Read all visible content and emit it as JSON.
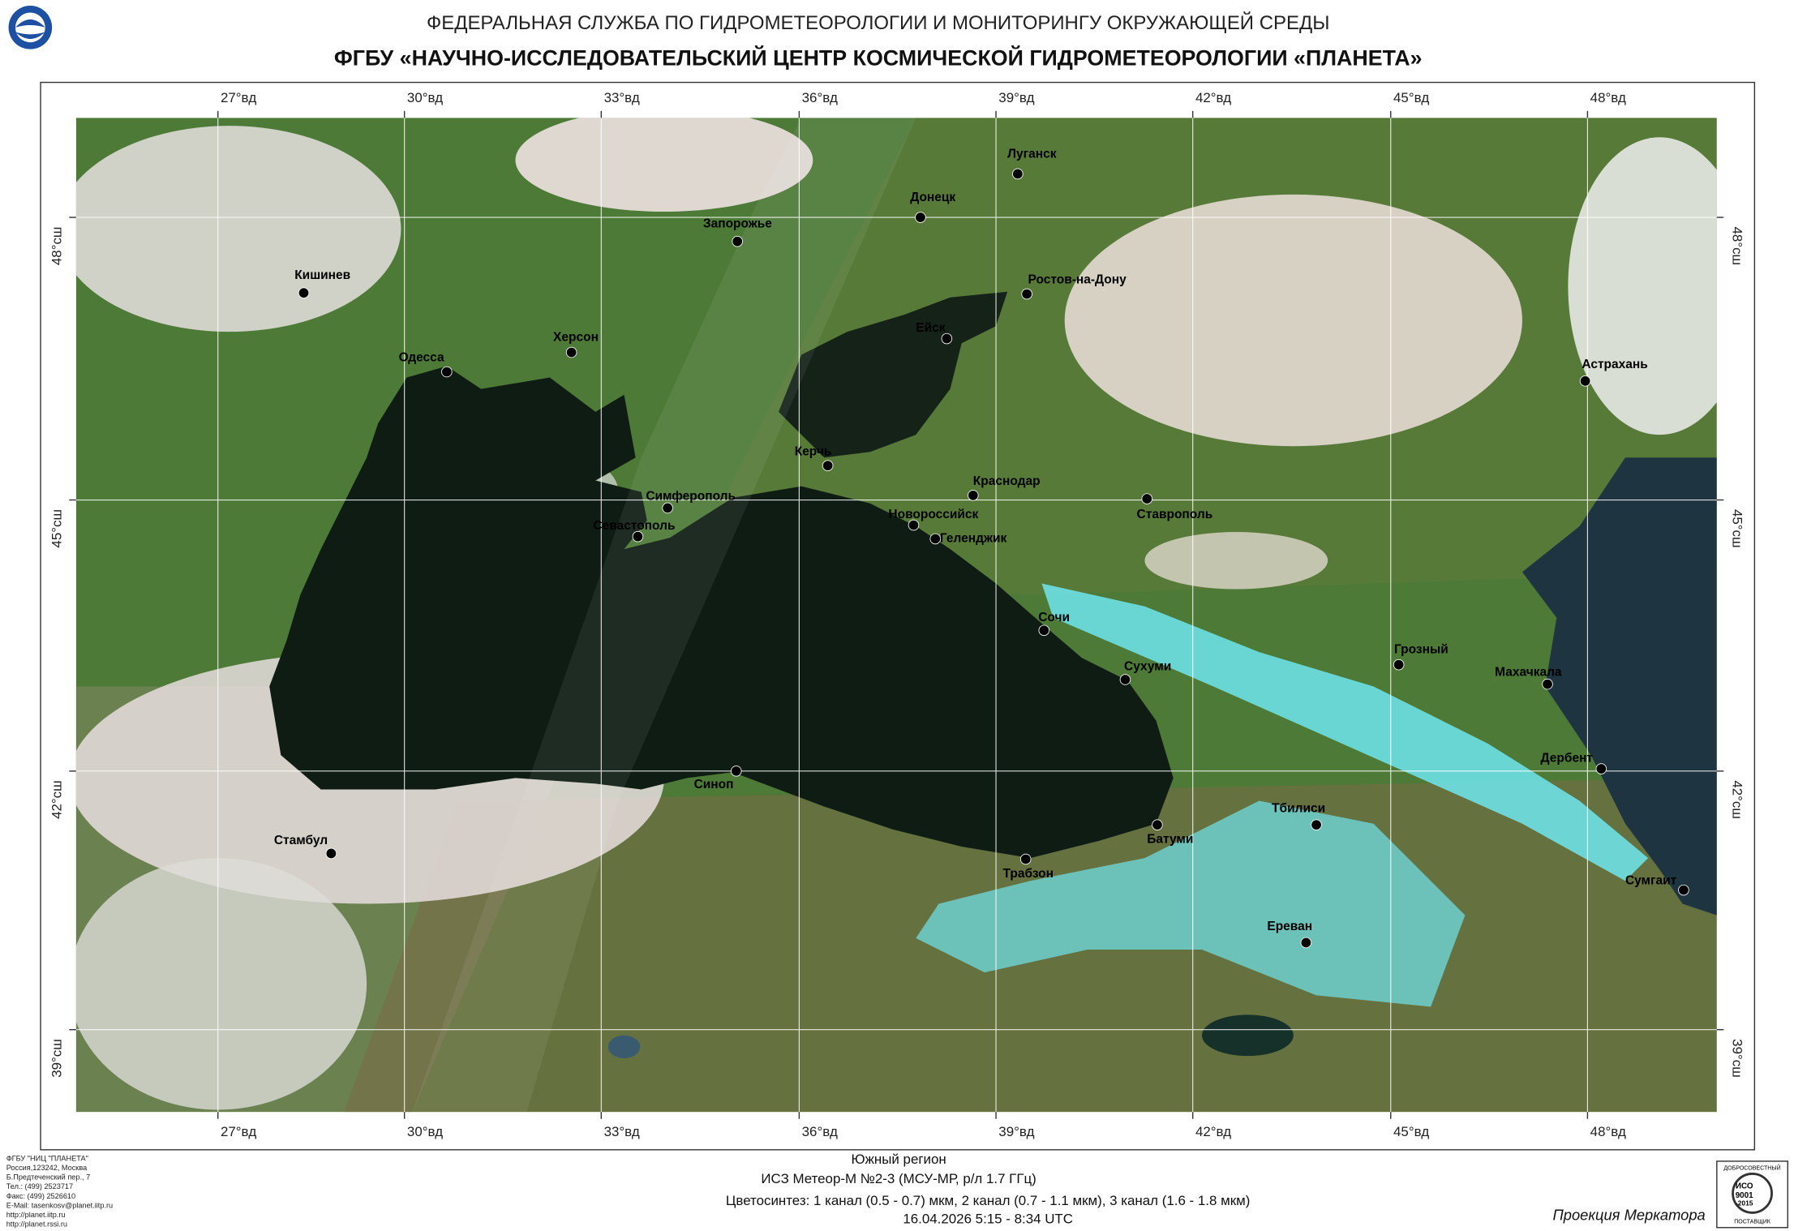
{
  "header": {
    "agency": "ФЕДЕРАЛЬНАЯ СЛУЖБА ПО ГИДРОМЕТЕОРОЛОГИИ И МОНИТОРИНГУ ОКРУЖАЮЩЕЙ СРЕДЫ",
    "center": "ФГБУ «НАУЧНО-ИССЛЕДОВАТЕЛЬСКИЙ ЦЕНТР КОСМИЧЕСКОЙ ГИДРОМЕТЕОРОЛОГИИ «ПЛАНЕТА»"
  },
  "map": {
    "lon_labels": [
      "27°вд",
      "30°вд",
      "33°вд",
      "36°вд",
      "39°вд",
      "42°вд",
      "45°вд",
      "48°вд"
    ],
    "lat_labels": [
      "48°сш",
      "45°сш",
      "42°сш",
      "39°сш"
    ],
    "cities": [
      "Луганск",
      "Донецк",
      "Запорожье",
      "Кишинев",
      "Ростов-на-Дону",
      "Херсон",
      "Ейск",
      "Одесса",
      "Астрахань",
      "Керчь",
      "Краснодар",
      "Симферополь",
      "Ставрополь",
      "Новороссийск",
      "Севастополь",
      "Геленджик",
      "Сочи",
      "Грозный",
      "Сухуми",
      "Махачкала",
      "Дербент",
      "Синоп",
      "Батуми",
      "Тбилиси",
      "Стамбул",
      "Трабзон",
      "Сумгаит",
      "Ереван"
    ]
  },
  "footer": {
    "region": "Южный регион",
    "satellite": "ИСЗ Метеор-М №2-3 (МСУ-МР, р/л 1.7 ГГц)",
    "channels": "Цветосинтез: 1 канал (0.5 - 0.7) мкм, 2 канал (0.7 - 1.1 мкм), 3 канал (1.6 - 1.8 мкм)",
    "datetime": "16.04.2026  5:15 - 8:34 UTC",
    "projection": "Проекция Меркатора"
  },
  "address": [
    "ФГБУ \"НИЦ \"ПЛАНЕТА\"",
    "Россия,123242, Москва",
    "Б.Предтеченский пер., 7",
    "Тел.:  (499) 2523717",
    "Факс: (499) 2526610",
    "E-Mail: tasenkosv@planet.iitp.ru",
    "http://planet.iitp.ru",
    "http://planet.rssi.ru"
  ],
  "iso_logo": {
    "top": "ДОБРОСОВЕСТНЫЙ",
    "name": "ИСО",
    "standard": "9001",
    "year": "-2015",
    "bottom": "ПОСТАВЩИК"
  }
}
